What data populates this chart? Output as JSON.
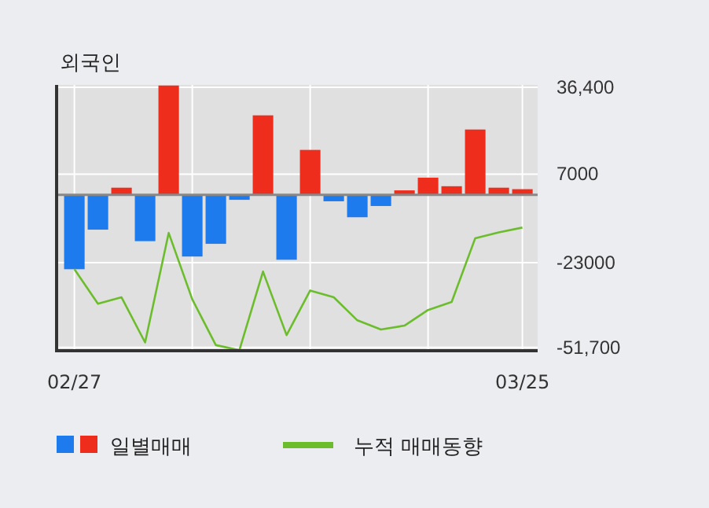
{
  "chart_data": {
    "type": "bar",
    "title": "외국인",
    "categories": [
      "02/27",
      null,
      null,
      null,
      null,
      null,
      null,
      null,
      null,
      null,
      null,
      null,
      null,
      null,
      null,
      null,
      null,
      null,
      null,
      "03/25"
    ],
    "series": [
      {
        "name": "일별매매",
        "colors": [
          "#1e7bed",
          "#1e7bed",
          "#ee2d1c",
          "#1e7bed",
          "#ee2d1c",
          "#1e7bed",
          "#1e7bed",
          "#1e7bed",
          "#ee2d1c",
          "#1e7bed",
          "#ee2d1c",
          "#1e7bed",
          "#1e7bed",
          "#1e7bed",
          "#ee2d1c",
          "#ee2d1c",
          "#ee2d1c",
          "#ee2d1c",
          "#ee2d1c",
          "#ee2d1c"
        ],
        "values": [
          -25200,
          -11800,
          2400,
          -15700,
          37000,
          -20900,
          -16600,
          -1700,
          26900,
          -22000,
          15200,
          -2200,
          -7600,
          -3800,
          1500,
          5800,
          2900,
          22100,
          2400,
          1900
        ]
      },
      {
        "type": "line",
        "name": "누적 매매동향",
        "color": "#6cbd2c",
        "values": [
          -25200,
          -36900,
          -34700,
          -50000,
          -12900,
          -35400,
          -50900,
          -52600,
          -26000,
          -47500,
          -32400,
          -34700,
          -42500,
          -45600,
          -44300,
          -39000,
          -36300,
          -14700,
          -12700,
          -11100
        ]
      }
    ],
    "ylim": [
      -52800,
      37200
    ],
    "yticks": [
      {
        "value": 36400,
        "label": "36,400"
      },
      7000,
      -23000,
      {
        "value": -51700,
        "label": "-51,700"
      }
    ],
    "grid": true,
    "legend": "bottom"
  }
}
